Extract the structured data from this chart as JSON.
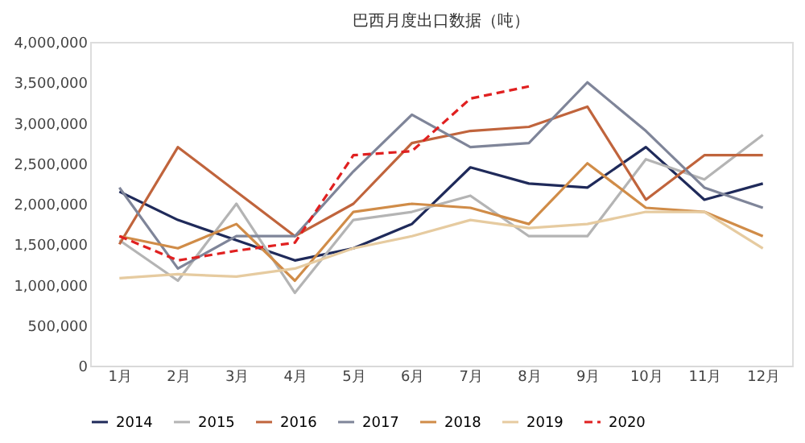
{
  "chart_data": {
    "type": "line",
    "title": "巴西月度出口数据（吨）",
    "categories": [
      "1月",
      "2月",
      "3月",
      "4月",
      "5月",
      "6月",
      "7月",
      "8月",
      "9月",
      "10月",
      "11月",
      "12月"
    ],
    "series": [
      {
        "name": "2014",
        "color": "#1f2a5a",
        "values": [
          2150000,
          1800000,
          1550000,
          1300000,
          1450000,
          1750000,
          2450000,
          2250000,
          2200000,
          2700000,
          2050000,
          2250000
        ]
      },
      {
        "name": "2015",
        "color": "#b4b4b4",
        "values": [
          1550000,
          1050000,
          2000000,
          900000,
          1800000,
          1900000,
          2100000,
          1600000,
          1600000,
          2550000,
          2300000,
          2850000
        ]
      },
      {
        "name": "2016",
        "color": "#c0643c",
        "values": [
          1500000,
          2700000,
          2150000,
          1600000,
          2000000,
          2750000,
          2900000,
          2950000,
          3200000,
          2050000,
          2600000,
          2600000
        ]
      },
      {
        "name": "2017",
        "color": "#7f8599",
        "values": [
          2200000,
          1200000,
          1600000,
          1600000,
          2400000,
          3100000,
          2700000,
          2750000,
          3500000,
          2900000,
          2200000,
          1950000
        ]
      },
      {
        "name": "2018",
        "color": "#d08c48",
        "values": [
          1600000,
          1450000,
          1750000,
          1050000,
          1900000,
          2000000,
          1950000,
          1750000,
          2500000,
          1950000,
          1900000,
          1600000
        ]
      },
      {
        "name": "2019",
        "color": "#e6cba0",
        "values": [
          1080000,
          1130000,
          1100000,
          1200000,
          1450000,
          1600000,
          1800000,
          1700000,
          1750000,
          1900000,
          1900000,
          1450000
        ]
      },
      {
        "name": "2020",
        "color": "#e02020",
        "line_style": "dashed",
        "values": [
          1600000,
          1300000,
          1420000,
          1520000,
          2600000,
          2650000,
          3300000,
          3450000,
          null,
          null,
          null,
          null
        ]
      }
    ],
    "ylim": [
      0,
      4000000
    ],
    "yticks": [
      {
        "value": 0,
        "label": "0"
      },
      {
        "value": 500000,
        "label": "500,000"
      },
      {
        "value": 1000000,
        "label": "1,000,000"
      },
      {
        "value": 1500000,
        "label": "1,500,000"
      },
      {
        "value": 2000000,
        "label": "2,000,000"
      },
      {
        "value": 2500000,
        "label": "2,500,000"
      },
      {
        "value": 3000000,
        "label": "3,000,000"
      },
      {
        "value": 3500000,
        "label": "3,500,000"
      },
      {
        "value": 4000000,
        "label": "4,000,000"
      }
    ],
    "grid": false,
    "legend": "bottom",
    "marker": "none",
    "line_style": "solid"
  }
}
